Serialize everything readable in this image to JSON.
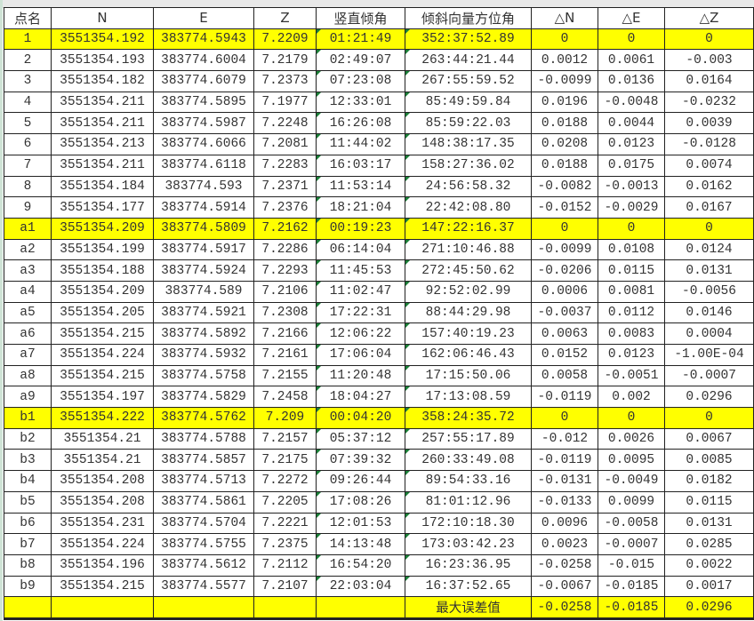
{
  "sheet": {
    "headers": [
      "点名",
      "N",
      "E",
      "Z",
      "竖直倾角",
      "倾斜向量方位角",
      "△N",
      "△E",
      "△Z"
    ],
    "highlight_color": "#ffff00",
    "rows": [
      {
        "hl": true,
        "cells": [
          "1",
          "3551354.192",
          "383774.5943",
          "7.2209",
          "01:21:49",
          "352:37:52.89",
          "0",
          "0",
          "0"
        ]
      },
      {
        "hl": false,
        "cells": [
          "2",
          "3551354.193",
          "383774.6004",
          "7.2179",
          "02:49:07",
          "263:44:21.44",
          "0.0012",
          "0.0061",
          "-0.003"
        ]
      },
      {
        "hl": false,
        "cells": [
          "3",
          "3551354.182",
          "383774.6079",
          "7.2373",
          "07:23:08",
          "267:55:59.52",
          "-0.0099",
          "0.0136",
          "0.0164"
        ]
      },
      {
        "hl": false,
        "cells": [
          "4",
          "3551354.211",
          "383774.5895",
          "7.1977",
          "12:33:01",
          "85:49:59.84",
          "0.0196",
          "-0.0048",
          "-0.0232"
        ]
      },
      {
        "hl": false,
        "cells": [
          "5",
          "3551354.211",
          "383774.5987",
          "7.2248",
          "16:26:08",
          "85:59:22.03",
          "0.0188",
          "0.0044",
          "0.0039"
        ]
      },
      {
        "hl": false,
        "cells": [
          "6",
          "3551354.213",
          "383774.6066",
          "7.2081",
          "11:44:02",
          "148:38:17.35",
          "0.0208",
          "0.0123",
          "-0.0128"
        ]
      },
      {
        "hl": false,
        "cells": [
          "7",
          "3551354.211",
          "383774.6118",
          "7.2283",
          "16:03:17",
          "158:27:36.02",
          "0.0188",
          "0.0175",
          "0.0074"
        ]
      },
      {
        "hl": false,
        "cells": [
          "8",
          "3551354.184",
          "383774.593",
          "7.2371",
          "11:53:14",
          "24:56:58.32",
          "-0.0082",
          "-0.0013",
          "0.0162"
        ]
      },
      {
        "hl": false,
        "cells": [
          "9",
          "3551354.177",
          "383774.5914",
          "7.2376",
          "18:21:04",
          "22:42:08.80",
          "-0.0152",
          "-0.0029",
          "0.0167"
        ]
      },
      {
        "hl": true,
        "cells": [
          "a1",
          "3551354.209",
          "383774.5809",
          "7.2162",
          "00:19:23",
          "147:22:16.37",
          "0",
          "0",
          "0"
        ]
      },
      {
        "hl": false,
        "cells": [
          "a2",
          "3551354.199",
          "383774.5917",
          "7.2286",
          "06:14:04",
          "271:10:46.88",
          "-0.0099",
          "0.0108",
          "0.0124"
        ]
      },
      {
        "hl": false,
        "cells": [
          "a3",
          "3551354.188",
          "383774.5924",
          "7.2293",
          "11:45:53",
          "272:45:50.62",
          "-0.0206",
          "0.0115",
          "0.0131"
        ]
      },
      {
        "hl": false,
        "cells": [
          "a4",
          "3551354.209",
          "383774.589",
          "7.2106",
          "11:02:47",
          "92:52:02.99",
          "0.0006",
          "0.0081",
          "-0.0056"
        ]
      },
      {
        "hl": false,
        "cells": [
          "a5",
          "3551354.205",
          "383774.5921",
          "7.2308",
          "17:22:31",
          "88:44:29.98",
          "-0.0037",
          "0.0112",
          "0.0146"
        ]
      },
      {
        "hl": false,
        "cells": [
          "a6",
          "3551354.215",
          "383774.5892",
          "7.2166",
          "12:06:22",
          "157:40:19.23",
          "0.0063",
          "0.0083",
          "0.0004"
        ]
      },
      {
        "hl": false,
        "cells": [
          "a7",
          "3551354.224",
          "383774.5932",
          "7.2161",
          "17:06:04",
          "162:06:46.43",
          "0.0152",
          "0.0123",
          "-1.00E-04"
        ]
      },
      {
        "hl": false,
        "cells": [
          "a8",
          "3551354.215",
          "383774.5758",
          "7.2155",
          "11:20:48",
          "17:15:50.06",
          "0.0058",
          "-0.0051",
          "-0.0007"
        ]
      },
      {
        "hl": false,
        "cells": [
          "a9",
          "3551354.197",
          "383774.5829",
          "7.2458",
          "18:04:27",
          "17:13:08.59",
          "-0.0119",
          "0.002",
          "0.0296"
        ]
      },
      {
        "hl": true,
        "cells": [
          "b1",
          "3551354.222",
          "383774.5762",
          "7.209",
          "00:04:20",
          "358:24:35.72",
          "0",
          "0",
          "0"
        ]
      },
      {
        "hl": false,
        "cells": [
          "b2",
          "3551354.21",
          "383774.5788",
          "7.2157",
          "05:37:12",
          "257:55:17.89",
          "-0.012",
          "0.0026",
          "0.0067"
        ]
      },
      {
        "hl": false,
        "cells": [
          "b3",
          "3551354.21",
          "383774.5857",
          "7.2175",
          "07:39:32",
          "260:33:49.08",
          "-0.0119",
          "0.0095",
          "0.0085"
        ]
      },
      {
        "hl": false,
        "cells": [
          "b4",
          "3551354.208",
          "383774.5713",
          "7.2272",
          "09:26:44",
          "89:54:33.16",
          "-0.0131",
          "-0.0049",
          "0.0182"
        ]
      },
      {
        "hl": false,
        "cells": [
          "b5",
          "3551354.208",
          "383774.5861",
          "7.2205",
          "17:08:26",
          "81:01:12.96",
          "-0.0133",
          "0.0099",
          "0.0115"
        ]
      },
      {
        "hl": false,
        "cells": [
          "b6",
          "3551354.231",
          "383774.5704",
          "7.2221",
          "12:01:53",
          "172:10:18.30",
          "0.0096",
          "-0.0058",
          "0.0131"
        ]
      },
      {
        "hl": false,
        "cells": [
          "b7",
          "3551354.224",
          "383774.5755",
          "7.2375",
          "14:13:48",
          "173:03:42.23",
          "0.0023",
          "-0.0007",
          "0.0285"
        ]
      },
      {
        "hl": false,
        "cells": [
          "b8",
          "3551354.196",
          "383774.5612",
          "7.2112",
          "16:54:20",
          "16:23:36.95",
          "-0.0258",
          "-0.015",
          "0.0022"
        ]
      },
      {
        "hl": false,
        "cells": [
          "b9",
          "3551354.215",
          "383774.5577",
          "7.2107",
          "22:03:04",
          "16:37:52.65",
          "-0.0067",
          "-0.0185",
          "0.0017"
        ]
      }
    ],
    "summary": {
      "label": "最大误差值",
      "dN": "-0.0258",
      "dE": "-0.0185",
      "dZ": "0.0296"
    }
  }
}
